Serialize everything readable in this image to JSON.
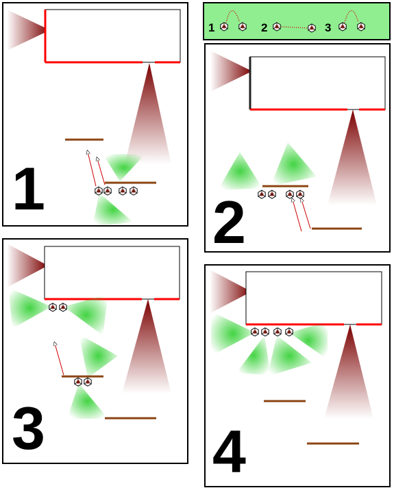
{
  "legend": {
    "background": "#90ee90",
    "items": [
      {
        "label": "1",
        "style": "arc"
      },
      {
        "label": "2",
        "style": "line"
      },
      {
        "label": "3",
        "style": "arc"
      }
    ]
  },
  "panels": [
    {
      "label": "1"
    },
    {
      "label": "2"
    },
    {
      "label": "3"
    },
    {
      "label": "4"
    }
  ],
  "colors": {
    "frame": "#000000",
    "wall": "#ff0000",
    "wall_dark": "#222222",
    "table": "#8b4513",
    "light_dark": "#7b0000",
    "light_green": "#22cc22",
    "trajectory": "#cc0000",
    "robot_outline": "#000000",
    "robot_mark": "#c0392b"
  }
}
